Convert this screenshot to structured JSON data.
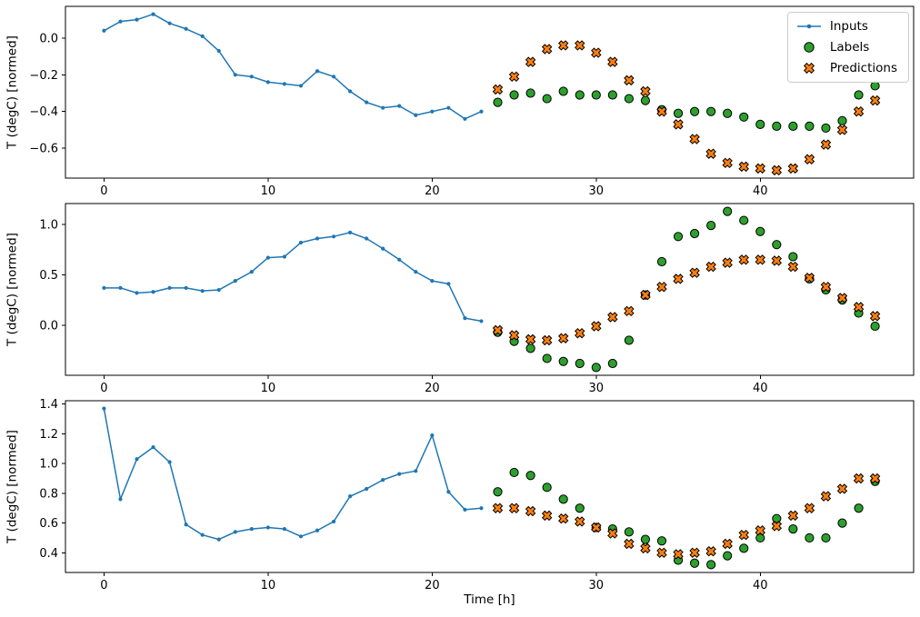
{
  "figure": {
    "xlabel": "Time [h]",
    "legend_position": "upper-right",
    "colors": {
      "inputs_line": "#1f77b4",
      "labels_fill": "#2ca02c",
      "predictions_fill": "#ff7f0e",
      "marker_edge": "#000000",
      "axes_edge": "#000000",
      "legend_border": "#cccccc",
      "background": "#ffffff"
    }
  },
  "chart_data": [
    {
      "type": "line",
      "ylabel": "T (degC) [normed]",
      "xlabel": "",
      "xlim": [
        -2.35,
        49.35
      ],
      "ylim": [
        -0.7625,
        0.1725
      ],
      "xticks": [
        0,
        10,
        20,
        30,
        40
      ],
      "yticks": [
        0.0,
        -0.2,
        -0.4,
        -0.6
      ],
      "grid": false,
      "legend": true,
      "series": [
        {
          "name": "Inputs",
          "type": "line",
          "marker": "dot",
          "color": "#1f77b4",
          "x": [
            0,
            1,
            2,
            3,
            4,
            5,
            6,
            7,
            8,
            9,
            10,
            11,
            12,
            13,
            14,
            15,
            16,
            17,
            18,
            19,
            20,
            21,
            22,
            23
          ],
          "y": [
            0.04,
            0.09,
            0.1,
            0.13,
            0.08,
            0.05,
            0.01,
            -0.07,
            -0.2,
            -0.21,
            -0.24,
            -0.25,
            -0.26,
            -0.18,
            -0.21,
            -0.29,
            -0.35,
            -0.38,
            -0.37,
            -0.42,
            -0.4,
            -0.38,
            -0.44,
            -0.4
          ]
        },
        {
          "name": "Labels",
          "type": "scatter",
          "marker": "circle",
          "color": "#2ca02c",
          "x": [
            24,
            25,
            26,
            27,
            28,
            29,
            30,
            31,
            32,
            33,
            34,
            35,
            36,
            37,
            38,
            39,
            40,
            41,
            42,
            43,
            44,
            45,
            46,
            47
          ],
          "y": [
            -0.35,
            -0.31,
            -0.3,
            -0.33,
            -0.29,
            -0.31,
            -0.31,
            -0.31,
            -0.33,
            -0.34,
            -0.39,
            -0.41,
            -0.4,
            -0.4,
            -0.41,
            -0.43,
            -0.47,
            -0.48,
            -0.48,
            -0.48,
            -0.49,
            -0.45,
            -0.31,
            -0.26
          ]
        },
        {
          "name": "Predictions",
          "type": "scatter",
          "marker": "X",
          "color": "#ff7f0e",
          "x": [
            24,
            25,
            26,
            27,
            28,
            29,
            30,
            31,
            32,
            33,
            34,
            35,
            36,
            37,
            38,
            39,
            40,
            41,
            42,
            43,
            44,
            45,
            46,
            47
          ],
          "y": [
            -0.28,
            -0.21,
            -0.13,
            -0.06,
            -0.04,
            -0.04,
            -0.08,
            -0.13,
            -0.23,
            -0.29,
            -0.4,
            -0.47,
            -0.55,
            -0.63,
            -0.68,
            -0.7,
            -0.71,
            -0.72,
            -0.71,
            -0.66,
            -0.58,
            -0.5,
            -0.4,
            -0.34
          ]
        }
      ]
    },
    {
      "type": "line",
      "ylabel": "T (degC) [normed]",
      "xlabel": "",
      "xlim": [
        -2.35,
        49.35
      ],
      "ylim": [
        -0.4975,
        1.2075
      ],
      "xticks": [
        0,
        10,
        20,
        30,
        40
      ],
      "yticks": [
        0.0,
        0.5,
        1.0
      ],
      "grid": false,
      "legend": false,
      "series": [
        {
          "name": "Inputs",
          "type": "line",
          "marker": "dot",
          "color": "#1f77b4",
          "x": [
            0,
            1,
            2,
            3,
            4,
            5,
            6,
            7,
            8,
            9,
            10,
            11,
            12,
            13,
            14,
            15,
            16,
            17,
            18,
            19,
            20,
            21,
            22,
            23
          ],
          "y": [
            0.37,
            0.37,
            0.32,
            0.33,
            0.37,
            0.37,
            0.34,
            0.35,
            0.44,
            0.53,
            0.67,
            0.68,
            0.82,
            0.86,
            0.88,
            0.92,
            0.86,
            0.76,
            0.65,
            0.53,
            0.44,
            0.41,
            0.07,
            0.04
          ]
        },
        {
          "name": "Labels",
          "type": "scatter",
          "marker": "circle",
          "color": "#2ca02c",
          "x": [
            24,
            25,
            26,
            27,
            28,
            29,
            30,
            31,
            32,
            33,
            34,
            35,
            36,
            37,
            38,
            39,
            40,
            41,
            42,
            43,
            44,
            45,
            46,
            47
          ],
          "y": [
            -0.07,
            -0.16,
            -0.23,
            -0.33,
            -0.36,
            -0.38,
            -0.42,
            -0.38,
            -0.15,
            0.3,
            0.63,
            0.88,
            0.91,
            0.99,
            1.13,
            1.04,
            0.93,
            0.8,
            0.68,
            0.46,
            0.35,
            0.25,
            0.12,
            -0.01
          ]
        },
        {
          "name": "Predictions",
          "type": "scatter",
          "marker": "X",
          "color": "#ff7f0e",
          "x": [
            24,
            25,
            26,
            27,
            28,
            29,
            30,
            31,
            32,
            33,
            34,
            35,
            36,
            37,
            38,
            39,
            40,
            41,
            42,
            43,
            44,
            45,
            46,
            47
          ],
          "y": [
            -0.05,
            -0.1,
            -0.14,
            -0.15,
            -0.13,
            -0.08,
            -0.01,
            0.08,
            0.14,
            0.3,
            0.38,
            0.46,
            0.52,
            0.58,
            0.62,
            0.65,
            0.65,
            0.64,
            0.58,
            0.47,
            0.38,
            0.27,
            0.18,
            0.09
          ]
        }
      ]
    },
    {
      "type": "line",
      "ylabel": "T (degC) [normed]",
      "xlabel": "Time [h]",
      "xlim": [
        -2.35,
        49.35
      ],
      "ylim": [
        0.2675,
        1.4225
      ],
      "xticks": [
        0,
        10,
        20,
        30,
        40
      ],
      "yticks": [
        0.4,
        0.6,
        0.8,
        1.0,
        1.2,
        1.4
      ],
      "grid": false,
      "legend": false,
      "series": [
        {
          "name": "Inputs",
          "type": "line",
          "marker": "dot",
          "color": "#1f77b4",
          "x": [
            0,
            1,
            2,
            3,
            4,
            5,
            6,
            7,
            8,
            9,
            10,
            11,
            12,
            13,
            14,
            15,
            16,
            17,
            18,
            19,
            20,
            21,
            22,
            23
          ],
          "y": [
            1.37,
            0.76,
            1.03,
            1.11,
            1.01,
            0.59,
            0.52,
            0.49,
            0.54,
            0.56,
            0.57,
            0.56,
            0.51,
            0.55,
            0.61,
            0.78,
            0.83,
            0.89,
            0.93,
            0.95,
            1.19,
            0.81,
            0.69,
            0.7
          ]
        },
        {
          "name": "Labels",
          "type": "scatter",
          "marker": "circle",
          "color": "#2ca02c",
          "x": [
            24,
            25,
            26,
            27,
            28,
            29,
            30,
            31,
            32,
            33,
            34,
            35,
            36,
            37,
            38,
            39,
            40,
            41,
            42,
            43,
            44,
            45,
            46,
            47
          ],
          "y": [
            0.81,
            0.94,
            0.92,
            0.84,
            0.76,
            0.7,
            0.57,
            0.56,
            0.54,
            0.49,
            0.48,
            0.35,
            0.33,
            0.32,
            0.38,
            0.43,
            0.5,
            0.63,
            0.56,
            0.5,
            0.5,
            0.6,
            0.7,
            0.88
          ]
        },
        {
          "name": "Predictions",
          "type": "scatter",
          "marker": "X",
          "color": "#ff7f0e",
          "x": [
            24,
            25,
            26,
            27,
            28,
            29,
            30,
            31,
            32,
            33,
            34,
            35,
            36,
            37,
            38,
            39,
            40,
            41,
            42,
            43,
            44,
            45,
            46,
            47
          ],
          "y": [
            0.7,
            0.7,
            0.68,
            0.65,
            0.63,
            0.61,
            0.57,
            0.53,
            0.46,
            0.43,
            0.4,
            0.39,
            0.4,
            0.41,
            0.46,
            0.52,
            0.55,
            0.58,
            0.65,
            0.7,
            0.78,
            0.83,
            0.9,
            0.9
          ]
        }
      ]
    }
  ]
}
